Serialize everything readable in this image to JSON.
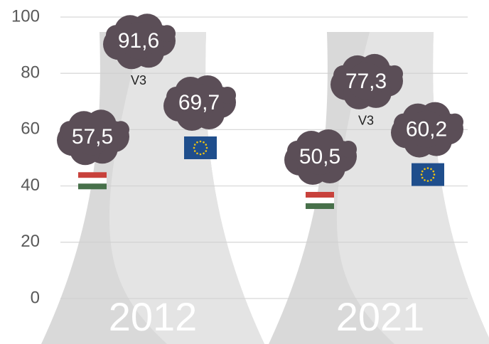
{
  "chart_data": {
    "type": "cloud-pictogram",
    "categories": [
      "2012",
      "2021"
    ],
    "series": [
      {
        "color": "#5b4e57",
        "values": [
          57.5,
          50.5
        ],
        "value_labels": [
          "57,5",
          "50,5"
        ]
      },
      {
        "name": "V3",
        "color": "#5b4e57",
        "values": [
          91.6,
          77.3
        ],
        "value_labels": [
          "91,6",
          "77,3"
        ]
      },
      {
        "color": "#5b4e57",
        "values": [
          69.7,
          60.2
        ],
        "value_labels": [
          "69,7",
          "60,2"
        ]
      }
    ],
    "ylim": [
      0,
      100
    ],
    "yticks": [
      0,
      20,
      40,
      60,
      80,
      100
    ],
    "grid": true
  }
}
